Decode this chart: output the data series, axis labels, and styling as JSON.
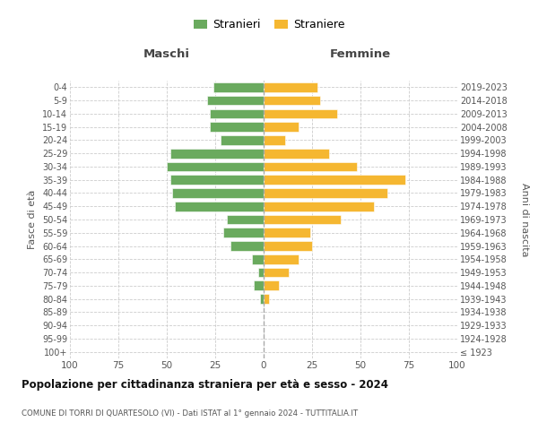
{
  "age_groups": [
    "100+",
    "95-99",
    "90-94",
    "85-89",
    "80-84",
    "75-79",
    "70-74",
    "65-69",
    "60-64",
    "55-59",
    "50-54",
    "45-49",
    "40-44",
    "35-39",
    "30-34",
    "25-29",
    "20-24",
    "15-19",
    "10-14",
    "5-9",
    "0-4"
  ],
  "birth_years": [
    "≤ 1923",
    "1924-1928",
    "1929-1933",
    "1934-1938",
    "1939-1943",
    "1944-1948",
    "1949-1953",
    "1954-1958",
    "1959-1963",
    "1964-1968",
    "1969-1973",
    "1974-1978",
    "1979-1983",
    "1984-1988",
    "1989-1993",
    "1994-1998",
    "1999-2003",
    "2004-2008",
    "2009-2013",
    "2014-2018",
    "2019-2023"
  ],
  "males": [
    0,
    0,
    0,
    0,
    2,
    5,
    3,
    6,
    17,
    21,
    19,
    46,
    47,
    48,
    50,
    48,
    22,
    28,
    28,
    29,
    26
  ],
  "females": [
    0,
    0,
    0,
    0,
    3,
    8,
    13,
    18,
    25,
    24,
    40,
    57,
    64,
    73,
    48,
    34,
    11,
    18,
    38,
    29,
    28
  ],
  "male_color": "#6aaa5e",
  "female_color": "#f5b731",
  "title": "Popolazione per cittadinanza straniera per età e sesso - 2024",
  "subtitle": "COMUNE DI TORRI DI QUARTESOLO (VI) - Dati ISTAT al 1° gennaio 2024 - TUTTITALIA.IT",
  "header_left": "Maschi",
  "header_right": "Femmine",
  "ylabel_left": "Fasce di età",
  "ylabel_right": "Anni di nascita",
  "legend_label_m": "Stranieri",
  "legend_label_f": "Straniere",
  "xlim": 100,
  "xtick_pos": [
    -100,
    -75,
    -50,
    -25,
    0,
    25,
    50,
    75,
    100
  ],
  "xtick_lab": [
    "100",
    "75",
    "50",
    "25",
    "0",
    "25",
    "50",
    "75",
    "100"
  ]
}
